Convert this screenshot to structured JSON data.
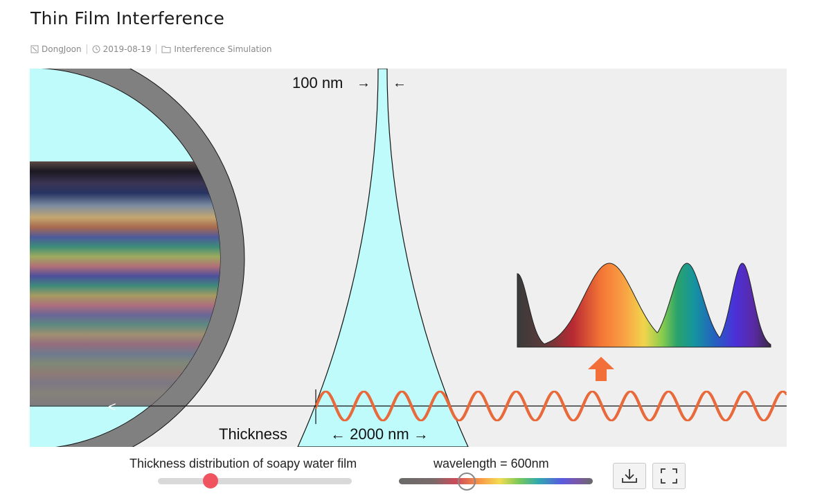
{
  "post": {
    "title": "Thin Film Interference",
    "author": "DongJoon",
    "date": "2019-08-19",
    "category": "Interference Simulation"
  },
  "simulation": {
    "top_label": "100 nm",
    "top_arrow_right": "→",
    "top_arrow_left": "←",
    "thickness_label": "Thickness",
    "bottom_label": "← 2000 nm →",
    "back_arrow": "<",
    "colors": {
      "background": "#efefef",
      "film": "#c0fbfb",
      "ring": "#808080",
      "wave": "#e8693a",
      "arrow": "#f26f3a",
      "slider_thumb": "#f0555f"
    }
  },
  "controls": {
    "thickness_slider_label": "Thickness distribution of soapy water film",
    "thickness_slider_value": 0.27,
    "wavelength_label": "wavelength = 600nm",
    "wavelength_slider_value": 0.35,
    "download_icon": "download-icon",
    "fullscreen_icon": "fullscreen-icon"
  }
}
